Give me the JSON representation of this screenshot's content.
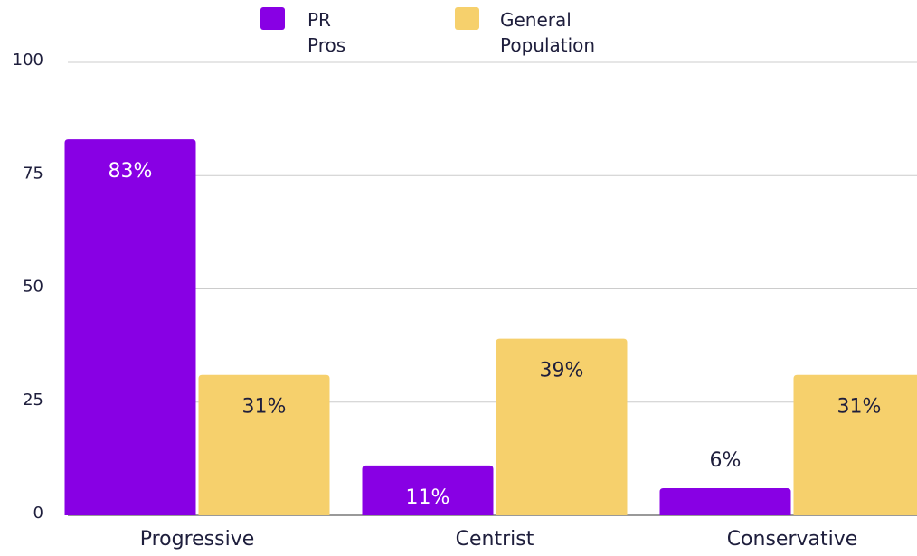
{
  "chart_data": {
    "type": "bar",
    "categories": [
      "Progressive",
      "Centrist",
      "Conservative"
    ],
    "series": [
      {
        "name": "PR Pros",
        "color": "#8800e4",
        "values": [
          83,
          11,
          6
        ],
        "value_labels": [
          "83%",
          "11%",
          "6%"
        ]
      },
      {
        "name": "General Population",
        "color": "#f6d06c",
        "values": [
          31,
          39,
          31
        ],
        "value_labels": [
          "31%",
          "39%",
          "31%"
        ]
      }
    ],
    "ylim": [
      0,
      100
    ],
    "yticks": [
      0,
      25,
      50,
      75,
      100
    ],
    "grid": true,
    "legend": "top"
  }
}
